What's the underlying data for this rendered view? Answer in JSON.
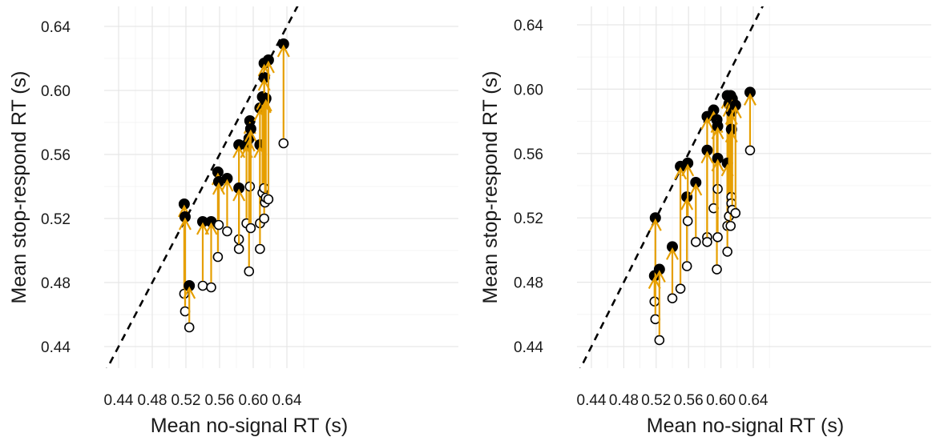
{
  "chart_data": [
    {
      "type": "scatter",
      "xlabel": "Mean no-signal RT (s)",
      "ylabel": "Mean stop-respond RT (s)",
      "xlim": [
        0.43,
        0.645
      ],
      "ylim": [
        0.43,
        0.648
      ],
      "xticks": [
        "0.44",
        "0.48",
        "0.52",
        "0.56",
        "0.60",
        "0.64"
      ],
      "yticks": [
        "0.44",
        "0.48",
        "0.52",
        "0.56",
        "0.60",
        "0.64"
      ],
      "grid": true,
      "reference_line": "y = x (dashed)",
      "markers": {
        "open_circle": "before",
        "filled_circle": "after",
        "arrow_color": "#E69F00"
      },
      "points": [
        {
          "x": 0.518,
          "y_open": 0.473,
          "y_filled": 0.529
        },
        {
          "x": 0.519,
          "y_open": 0.462,
          "y_filled": 0.521
        },
        {
          "x": 0.524,
          "y_open": 0.452,
          "y_filled": 0.478
        },
        {
          "x": 0.54,
          "y_open": 0.478,
          "y_filled": 0.518
        },
        {
          "x": 0.55,
          "y_open": 0.477,
          "y_filled": 0.518
        },
        {
          "x": 0.558,
          "y_open": 0.496,
          "y_filled": 0.549
        },
        {
          "x": 0.559,
          "y_open": 0.516,
          "y_filled": 0.543
        },
        {
          "x": 0.569,
          "y_open": 0.512,
          "y_filled": 0.545
        },
        {
          "x": 0.583,
          "y_open": 0.507,
          "y_filled": 0.566
        },
        {
          "x": 0.583,
          "y_open": 0.501,
          "y_filled": 0.539
        },
        {
          "x": 0.592,
          "y_open": 0.517,
          "y_filled": 0.566
        },
        {
          "x": 0.595,
          "y_open": 0.487,
          "y_filled": 0.57
        },
        {
          "x": 0.596,
          "y_open": 0.54,
          "y_filled": 0.581
        },
        {
          "x": 0.597,
          "y_open": 0.514,
          "y_filled": 0.576
        },
        {
          "x": 0.608,
          "y_open": 0.517,
          "y_filled": 0.566
        },
        {
          "x": 0.608,
          "y_open": 0.501,
          "y_filled": 0.589
        },
        {
          "x": 0.611,
          "y_open": 0.536,
          "y_filled": 0.596
        },
        {
          "x": 0.613,
          "y_open": 0.52,
          "y_filled": 0.617
        },
        {
          "x": 0.613,
          "y_open": 0.539,
          "y_filled": 0.608
        },
        {
          "x": 0.614,
          "y_open": 0.53,
          "y_filled": 0.594
        },
        {
          "x": 0.615,
          "y_open": 0.533,
          "y_filled": 0.595
        },
        {
          "x": 0.618,
          "y_open": 0.532,
          "y_filled": 0.619
        },
        {
          "x": 0.636,
          "y_open": 0.567,
          "y_filled": 0.629
        }
      ]
    },
    {
      "type": "scatter",
      "xlabel": "Mean no-signal RT (s)",
      "ylabel": "Mean stop-respond RT (s)",
      "xlim": [
        0.43,
        0.645
      ],
      "ylim": [
        0.43,
        0.648
      ],
      "xticks": [
        "0.44",
        "0.48",
        "0.52",
        "0.56",
        "0.60",
        "0.64"
      ],
      "yticks": [
        "0.44",
        "0.48",
        "0.52",
        "0.56",
        "0.60",
        "0.64"
      ],
      "grid": true,
      "reference_line": "y = x (dashed)",
      "markers": {
        "open_circle": "before",
        "filled_circle": "after",
        "arrow_color": "#E69F00"
      },
      "points": [
        {
          "x": 0.518,
          "y_open": 0.468,
          "y_filled": 0.484
        },
        {
          "x": 0.519,
          "y_open": 0.457,
          "y_filled": 0.52
        },
        {
          "x": 0.524,
          "y_open": 0.444,
          "y_filled": 0.488
        },
        {
          "x": 0.54,
          "y_open": 0.47,
          "y_filled": 0.502
        },
        {
          "x": 0.55,
          "y_open": 0.476,
          "y_filled": 0.552
        },
        {
          "x": 0.558,
          "y_open": 0.49,
          "y_filled": 0.533
        },
        {
          "x": 0.559,
          "y_open": 0.518,
          "y_filled": 0.554
        },
        {
          "x": 0.569,
          "y_open": 0.505,
          "y_filled": 0.542
        },
        {
          "x": 0.583,
          "y_open": 0.508,
          "y_filled": 0.583
        },
        {
          "x": 0.583,
          "y_open": 0.505,
          "y_filled": 0.562
        },
        {
          "x": 0.591,
          "y_open": 0.526,
          "y_filled": 0.587
        },
        {
          "x": 0.595,
          "y_open": 0.488,
          "y_filled": 0.581
        },
        {
          "x": 0.596,
          "y_open": 0.538,
          "y_filled": 0.577
        },
        {
          "x": 0.596,
          "y_open": 0.508,
          "y_filled": 0.557
        },
        {
          "x": 0.608,
          "y_open": 0.515,
          "y_filled": 0.596
        },
        {
          "x": 0.608,
          "y_open": 0.499,
          "y_filled": 0.554
        },
        {
          "x": 0.61,
          "y_open": 0.521,
          "y_filled": 0.591
        },
        {
          "x": 0.612,
          "y_open": 0.515,
          "y_filled": 0.596
        },
        {
          "x": 0.613,
          "y_open": 0.533,
          "y_filled": 0.586
        },
        {
          "x": 0.613,
          "y_open": 0.529,
          "y_filled": 0.575
        },
        {
          "x": 0.614,
          "y_open": 0.525,
          "y_filled": 0.594
        },
        {
          "x": 0.618,
          "y_open": 0.523,
          "y_filled": 0.59
        },
        {
          "x": 0.636,
          "y_open": 0.562,
          "y_filled": 0.598
        }
      ]
    }
  ]
}
